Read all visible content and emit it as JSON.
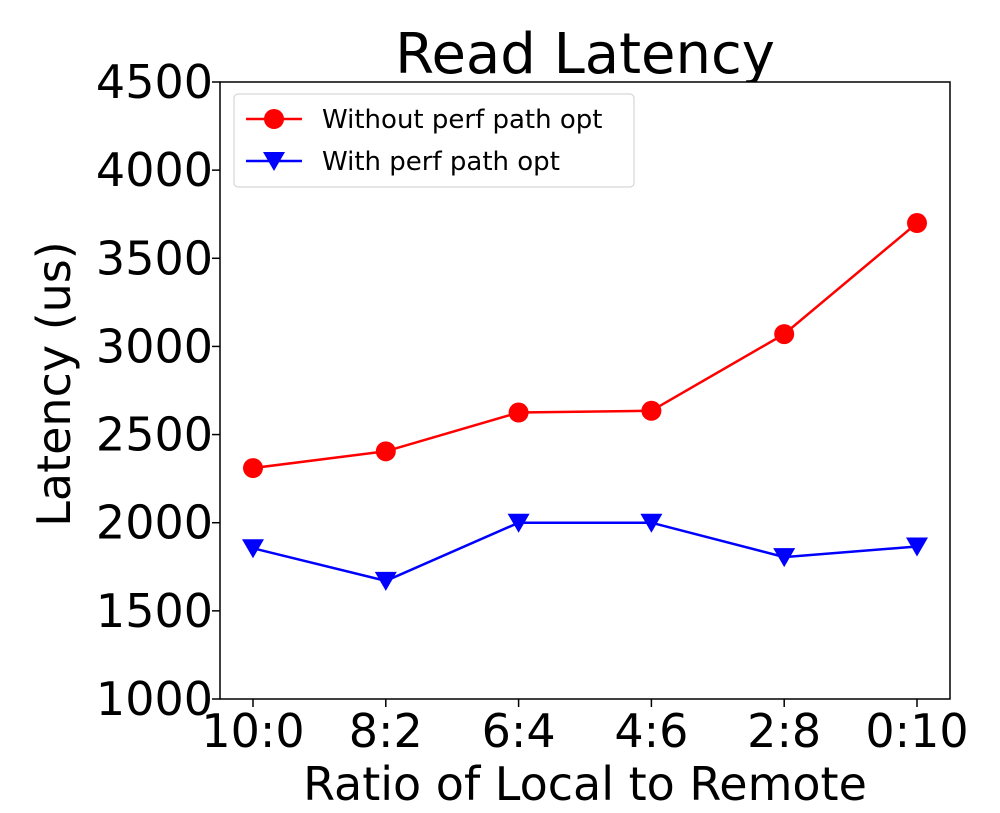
{
  "chart_data": {
    "type": "line",
    "title": "Read Latency",
    "xlabel": "Ratio of Local to Remote",
    "ylabel": "Latency (us)",
    "categories": [
      "10:0",
      "8:2",
      "6:4",
      "4:6",
      "2:8",
      "0:10"
    ],
    "ylim": [
      1000,
      4500
    ],
    "yticks": [
      1000,
      1500,
      2000,
      2500,
      3000,
      3500,
      4000,
      4500
    ],
    "grid": false,
    "legend_position": "top-left",
    "series": [
      {
        "name": "Without perf path opt",
        "color": "#ff0000",
        "marker": "circle",
        "values": [
          2310,
          2405,
          2625,
          2635,
          3070,
          3700
        ]
      },
      {
        "name": "With perf path opt",
        "color": "#0000ff",
        "marker": "triangle-down",
        "values": [
          1855,
          1670,
          2000,
          2000,
          1805,
          1865
        ]
      }
    ]
  }
}
